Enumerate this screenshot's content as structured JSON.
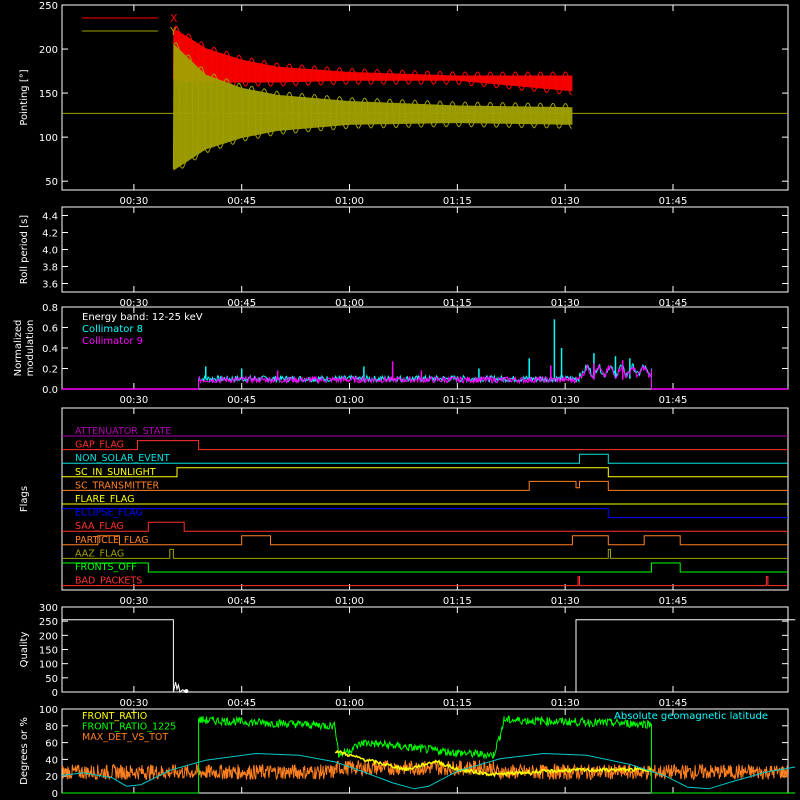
{
  "time_ticks": [
    "00:30",
    "00:45",
    "01:00",
    "01:15",
    "01:30",
    "01:45"
  ],
  "colors": {
    "background": "#000000",
    "axes": "#ffffff",
    "red": "#ff0000",
    "olive": "#a0a000",
    "cyan": "#00ffff",
    "magenta": "#ff00ff",
    "green": "#00ff00",
    "orange": "#ff8020",
    "yellow": "#ffff00",
    "blue": "#0000ff",
    "purple": "#b000b0",
    "white": "#ffffff"
  },
  "chart_data": [
    {
      "id": "pointing",
      "type": "line",
      "ylabel": "Pointing [°]",
      "ylim": [
        40,
        250
      ],
      "yticks": [
        50,
        100,
        150,
        200,
        250
      ],
      "legend_position": "top-left",
      "reference_line": 127,
      "series": [
        {
          "name": "X",
          "color": "#ff0000",
          "envelope": [
            {
              "t": 35.5,
              "low": 160,
              "high": 228
            },
            {
              "t": 40,
              "low": 158,
              "high": 205
            },
            {
              "t": 45,
              "low": 158,
              "high": 192
            },
            {
              "t": 50,
              "low": 158,
              "high": 184
            },
            {
              "t": 60,
              "low": 160,
              "high": 178
            },
            {
              "t": 75,
              "low": 160,
              "high": 174
            },
            {
              "t": 91,
              "low": 148,
              "high": 174
            }
          ]
        },
        {
          "name": "Y",
          "color": "#a0a000",
          "envelope": [
            {
              "t": 35.5,
              "low": 58,
              "high": 210
            },
            {
              "t": 40,
              "low": 82,
              "high": 175
            },
            {
              "t": 45,
              "low": 95,
              "high": 160
            },
            {
              "t": 50,
              "low": 103,
              "high": 152
            },
            {
              "t": 60,
              "low": 110,
              "high": 145
            },
            {
              "t": 75,
              "low": 112,
              "high": 140
            },
            {
              "t": 91,
              "low": 110,
              "high": 138
            }
          ]
        }
      ]
    },
    {
      "id": "roll",
      "type": "line",
      "ylabel": "Roll period [s]",
      "ylim": [
        3.5,
        4.5
      ],
      "yticks": [
        3.6,
        3.8,
        4.0,
        4.2,
        4.4
      ],
      "series": []
    },
    {
      "id": "modulation",
      "type": "line",
      "ylabel": [
        "Normalized",
        "modulation"
      ],
      "ylim": [
        0,
        0.8
      ],
      "yticks": [
        0.0,
        0.2,
        0.4,
        0.6,
        0.8
      ],
      "annotation": "Energy band: 12-25 keV",
      "legend_position": "top-left",
      "active_range": [
        39,
        102
      ],
      "series": [
        {
          "name": "Collimator 8",
          "color": "#00ffff",
          "baseline": 0.1,
          "spikes": [
            [
              40,
              0.22
            ],
            [
              45,
              0.2
            ],
            [
              62,
              0.22
            ],
            [
              78,
              0.2
            ],
            [
              85,
              0.3
            ],
            [
              88.5,
              0.68
            ],
            [
              89.5,
              0.4
            ],
            [
              94,
              0.35
            ],
            [
              97,
              0.32
            ],
            [
              99,
              0.3
            ]
          ]
        },
        {
          "name": "Collimator 9",
          "color": "#ff00ff",
          "baseline": 0.09,
          "spikes": [
            [
              50,
              0.18
            ],
            [
              66,
              0.27
            ],
            [
              70,
              0.18
            ],
            [
              88,
              0.23
            ],
            [
              94,
              0.25
            ],
            [
              98,
              0.28
            ]
          ]
        }
      ]
    },
    {
      "id": "flags",
      "type": "line",
      "ylabel": "Flags",
      "series": [
        {
          "name": "ATTENUATOR_STATE",
          "color": "#b000b0",
          "segments": [
            [
              20,
              0
            ]
          ]
        },
        {
          "name": "GAP_FLAG",
          "color": "#ff3030",
          "segments": [
            [
              20,
              0
            ],
            [
              30.5,
              1
            ],
            [
              39,
              0
            ]
          ]
        },
        {
          "name": "NON_SOLAR_EVENT",
          "color": "#00e0e0",
          "segments": [
            [
              20,
              0
            ],
            [
              92,
              1
            ],
            [
              96,
              0
            ]
          ]
        },
        {
          "name": "SC_IN_SUNLIGHT",
          "color": "#ffff00",
          "segments": [
            [
              20,
              0
            ],
            [
              36,
              1
            ],
            [
              96,
              0
            ]
          ]
        },
        {
          "name": "SC_TRANSMITTER",
          "color": "#ff8020",
          "segments": [
            [
              20,
              0
            ],
            [
              85,
              1
            ],
            [
              91.5,
              0.3
            ],
            [
              92,
              1
            ],
            [
              96,
              0
            ]
          ]
        },
        {
          "name": "FLARE_FLAG",
          "color": "#ffff00",
          "segments": [
            [
              20,
              0
            ]
          ]
        },
        {
          "name": "ECLIPSE_FLAG",
          "color": "#0000ff",
          "segments": [
            [
              20,
              1
            ],
            [
              96,
              0
            ]
          ]
        },
        {
          "name": "SAA_FLAG",
          "color": "#ff3030",
          "segments": [
            [
              20,
              0
            ],
            [
              32,
              1
            ],
            [
              37,
              0
            ]
          ]
        },
        {
          "name": "PARTICLE_FLAG",
          "color": "#ff8020",
          "segments": [
            [
              20,
              0
            ],
            [
              25,
              1
            ],
            [
              28,
              0
            ],
            [
              45,
              1
            ],
            [
              49,
              0
            ],
            [
              91,
              1
            ],
            [
              96,
              0
            ],
            [
              101,
              1
            ],
            [
              106,
              0
            ]
          ]
        },
        {
          "name": "AAZ_FLAG",
          "color": "#a0a000",
          "segments": [
            [
              20,
              0
            ],
            [
              35,
              1
            ],
            [
              35.5,
              0
            ],
            [
              96,
              1
            ],
            [
              96.3,
              0
            ]
          ]
        },
        {
          "name": "FRONTS_OFF",
          "color": "#00ff00",
          "segments": [
            [
              20,
              1
            ],
            [
              32,
              0
            ],
            [
              102,
              1
            ],
            [
              106,
              0
            ]
          ]
        },
        {
          "name": "BAD_PACKETS",
          "color": "#ff3030",
          "segments": [
            [
              20,
              0
            ],
            [
              91.8,
              1
            ],
            [
              92,
              0
            ],
            [
              118,
              1
            ],
            [
              118.2,
              0
            ]
          ]
        }
      ]
    },
    {
      "id": "quality",
      "type": "line",
      "ylabel": "Quality",
      "ylim": [
        0,
        300
      ],
      "yticks": [
        0,
        50,
        100,
        150,
        200,
        250,
        300
      ],
      "series": [
        {
          "name": "",
          "color": "#ffffff",
          "points": [
            [
              20,
              255
            ],
            [
              35.5,
              255
            ],
            [
              35.5,
              0
            ],
            [
              35.8,
              35
            ],
            [
              36,
              10
            ],
            [
              36.2,
              25
            ],
            [
              36.4,
              0
            ],
            [
              36.8,
              8
            ],
            [
              37.2,
              0
            ],
            [
              91.5,
              0
            ],
            [
              91.5,
              255
            ],
            [
              122,
              255
            ]
          ]
        }
      ]
    },
    {
      "id": "ratios",
      "type": "line",
      "ylabel": "Degrees or %",
      "ylim": [
        0,
        100
      ],
      "yticks": [
        0,
        20,
        40,
        60,
        80,
        100
      ],
      "legend_position": "top-left",
      "annotation": "Absolute geomagnetic latitude",
      "series": [
        {
          "name": "FRONT_RATIO",
          "color": "#ffff00",
          "points": [
            [
              58,
              50
            ],
            [
              62,
              40
            ],
            [
              68,
              28
            ],
            [
              72,
              38
            ],
            [
              75,
              28
            ],
            [
              80,
              22
            ],
            [
              84,
              24
            ],
            [
              90,
              27
            ],
            [
              102,
              28
            ]
          ]
        },
        {
          "name": "FRONT_RATIO_1225",
          "color": "#00ff00",
          "points": [
            [
              20,
              0
            ],
            [
              39,
              0
            ],
            [
              39,
              87
            ],
            [
              58,
              80
            ],
            [
              58.5,
              45
            ],
            [
              62,
              60
            ],
            [
              75,
              48
            ],
            [
              80,
              45
            ],
            [
              81,
              70
            ],
            [
              81.5,
              87
            ],
            [
              102,
              82
            ],
            [
              102,
              0
            ],
            [
              122,
              0
            ]
          ]
        },
        {
          "name": "MAX_DET_VS_TOT",
          "color": "#ff8020",
          "baseline": 25
        },
        {
          "name": "",
          "color": "#00c8c8",
          "points": [
            [
              20,
              21
            ],
            [
              23,
              24
            ],
            [
              27,
              18
            ],
            [
              29,
              8
            ],
            [
              31,
              10
            ],
            [
              35,
              27
            ],
            [
              40,
              39
            ],
            [
              47,
              47
            ],
            [
              53,
              45
            ],
            [
              58,
              37
            ],
            [
              62,
              25
            ],
            [
              66,
              12
            ],
            [
              69,
              5
            ],
            [
              71,
              8
            ],
            [
              75,
              26
            ],
            [
              81,
              41
            ],
            [
              87,
              47
            ],
            [
              93,
              45
            ],
            [
              99,
              34
            ],
            [
              104,
              20
            ],
            [
              107,
              7
            ],
            [
              110,
              5
            ],
            [
              113,
              13
            ],
            [
              118,
              25
            ],
            [
              122,
              31
            ]
          ]
        }
      ]
    }
  ]
}
